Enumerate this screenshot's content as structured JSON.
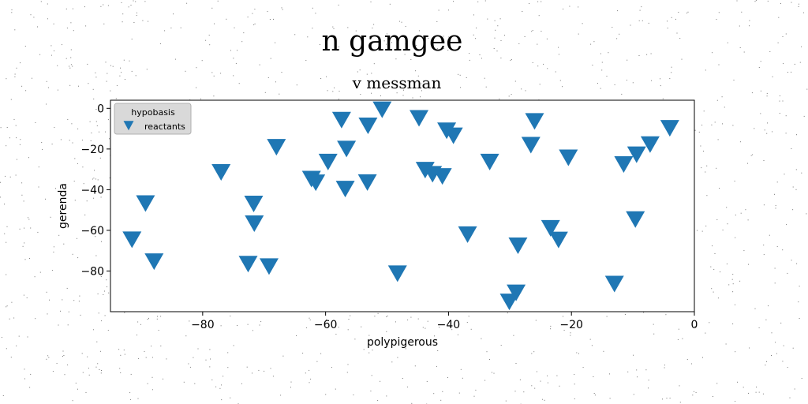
{
  "chart_data": {
    "type": "scatter",
    "suptitle": "n gamgee",
    "title": "v messman",
    "xlabel": "polypigerous",
    "ylabel": "gerenda",
    "xlim": [
      -95,
      0
    ],
    "ylim": [
      -100,
      4
    ],
    "xticks": [
      -80,
      -60,
      -40,
      -20,
      0
    ],
    "yticks": [
      0,
      -20,
      -40,
      -60,
      -80
    ],
    "grid": false,
    "legend": {
      "title": "hypobasis",
      "position": "top-left"
    },
    "series": [
      {
        "name": "reactants",
        "color": "#1f77b4",
        "marker": "triangle-down",
        "points": [
          {
            "x": -91.5,
            "y": -63.8
          },
          {
            "x": -89.3,
            "y": -46.0
          },
          {
            "x": -87.9,
            "y": -74.6
          },
          {
            "x": -77.0,
            "y": -30.7
          },
          {
            "x": -72.6,
            "y": -75.8
          },
          {
            "x": -71.7,
            "y": -46.2
          },
          {
            "x": -71.6,
            "y": -55.9
          },
          {
            "x": -69.2,
            "y": -77.0
          },
          {
            "x": -68.0,
            "y": -18.3
          },
          {
            "x": -62.3,
            "y": -34.0
          },
          {
            "x": -61.6,
            "y": -35.8
          },
          {
            "x": -59.6,
            "y": -25.6
          },
          {
            "x": -57.4,
            "y": -5.0
          },
          {
            "x": -56.8,
            "y": -38.9
          },
          {
            "x": -56.6,
            "y": -19.2
          },
          {
            "x": -53.1,
            "y": -7.8
          },
          {
            "x": -53.2,
            "y": -35.7
          },
          {
            "x": -50.8,
            "y": 0.1
          },
          {
            "x": -48.3,
            "y": -80.5
          },
          {
            "x": -44.8,
            "y": -4.1
          },
          {
            "x": -43.8,
            "y": -29.6
          },
          {
            "x": -42.6,
            "y": -31.6
          },
          {
            "x": -41.0,
            "y": -32.7
          },
          {
            "x": -40.3,
            "y": -10.2
          },
          {
            "x": -39.2,
            "y": -12.7
          },
          {
            "x": -36.9,
            "y": -61.3
          },
          {
            "x": -33.3,
            "y": -25.6
          },
          {
            "x": -30.1,
            "y": -94.4
          },
          {
            "x": -29.0,
            "y": -89.9
          },
          {
            "x": -28.7,
            "y": -66.8
          },
          {
            "x": -26.6,
            "y": -17.3
          },
          {
            "x": -26.0,
            "y": -5.6
          },
          {
            "x": -23.4,
            "y": -58.2
          },
          {
            "x": -22.1,
            "y": -63.9
          },
          {
            "x": -20.5,
            "y": -23.5
          },
          {
            "x": -13.0,
            "y": -85.6
          },
          {
            "x": -11.5,
            "y": -26.8
          },
          {
            "x": -9.6,
            "y": -53.9
          },
          {
            "x": -9.4,
            "y": -22.0
          },
          {
            "x": -7.2,
            "y": -17.0
          },
          {
            "x": -4.0,
            "y": -9.0
          }
        ]
      }
    ]
  }
}
